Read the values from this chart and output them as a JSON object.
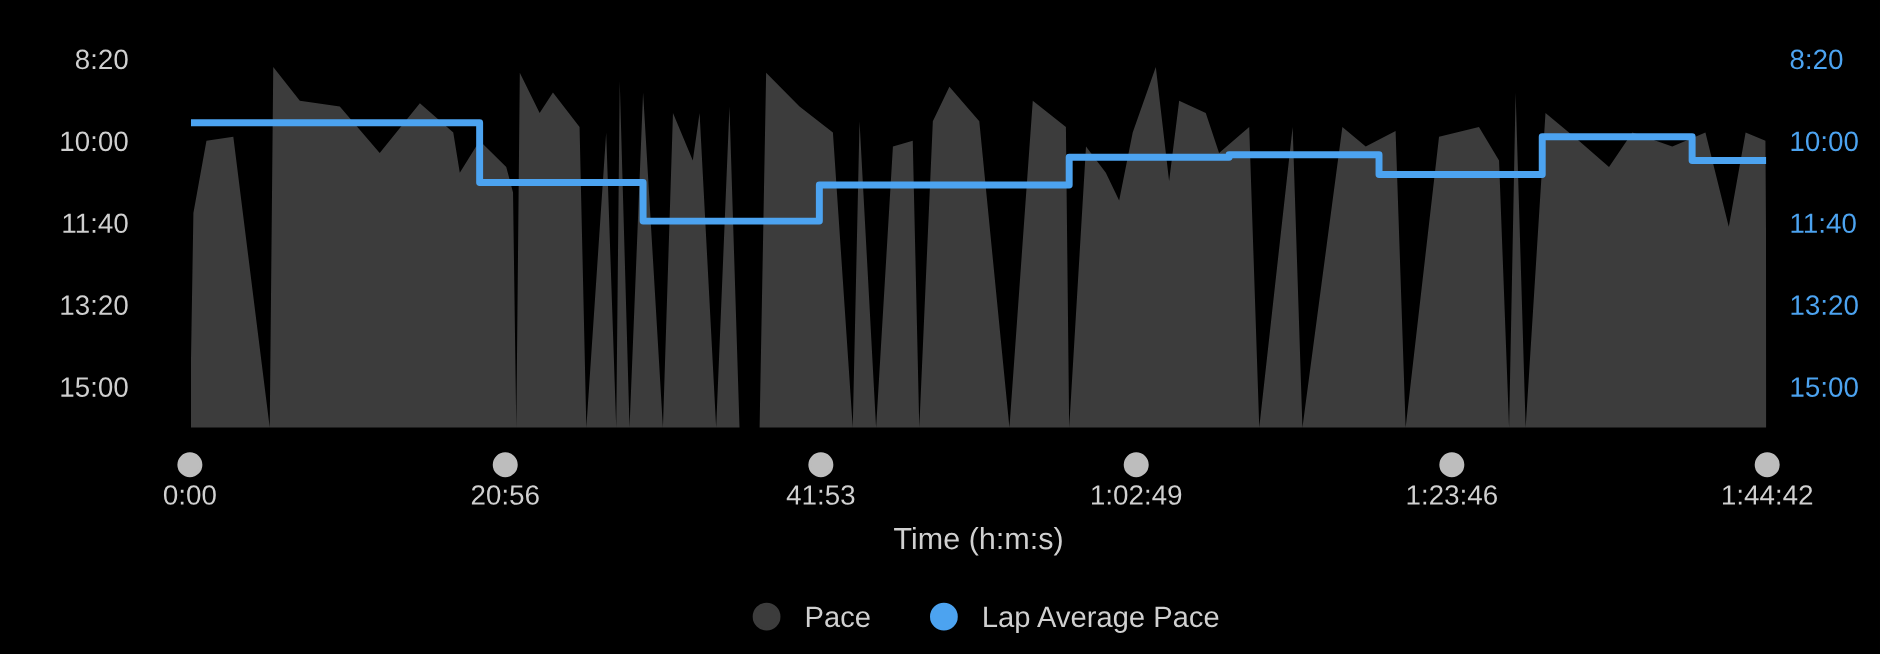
{
  "chart_data": {
    "type": "area",
    "xlabel": "Time (h:m:s)",
    "xlim": [
      0,
      6282
    ],
    "xticks": [
      {
        "value": 0,
        "label": "0:00"
      },
      {
        "value": 1256,
        "label": "20:56"
      },
      {
        "value": 2513,
        "label": "41:53"
      },
      {
        "value": 3769,
        "label": "1:02:49"
      },
      {
        "value": 5026,
        "label": "1:23:46"
      },
      {
        "value": 6282,
        "label": "1:44:42"
      }
    ],
    "ylim": [
      955,
      480
    ],
    "yticks": [
      {
        "value": 500,
        "label": "8:20"
      },
      {
        "value": 600,
        "label": "10:00"
      },
      {
        "value": 700,
        "label": "11:40"
      },
      {
        "value": 800,
        "label": "13:20"
      },
      {
        "value": 900,
        "label": "15:00"
      }
    ],
    "y2lim": [
      955,
      480
    ],
    "y2ticks": [
      {
        "value": 500,
        "label": "8:20"
      },
      {
        "value": 600,
        "label": "10:00"
      },
      {
        "value": 700,
        "label": "11:40"
      },
      {
        "value": 800,
        "label": "13:20"
      },
      {
        "value": 900,
        "label": "15:00"
      }
    ],
    "grid": false,
    "legend": "bottom",
    "series": [
      {
        "name": "Pace",
        "color": "#3c3c3c",
        "x": [
          0,
          14,
          66,
          173,
          318,
          332,
          438,
          597,
          756,
          916,
          1049,
          1075,
          1154,
          1260,
          1287,
          1300,
          1314,
          1393,
          1446,
          1552,
          1579,
          1658,
          1698,
          1712,
          1751,
          1805,
          1884,
          1924,
          2003,
          2030,
          2096,
          2149,
          2189,
          2269,
          2295,
          2428,
          2561,
          2640,
          2667,
          2733,
          2800,
          2879,
          2905,
          2959,
          3025,
          3144,
          3264,
          3357,
          3489,
          3502,
          3569,
          3648,
          3701,
          3755,
          3847,
          3900,
          3940,
          4046,
          4099,
          4219,
          4259,
          4392,
          4431,
          4590,
          4683,
          4802,
          4842,
          4975,
          5134,
          5214,
          5254,
          5280,
          5320,
          5399,
          5532,
          5652,
          5745,
          5904,
          6036,
          6129,
          6196,
          6275,
          6282
        ],
        "values": [
          950,
          688,
          600,
          595,
          950,
          510,
          551,
          558,
          615,
          554,
          590,
          639,
          600,
          632,
          663,
          950,
          517,
          566,
          541,
          583,
          950,
          590,
          950,
          527,
          950,
          541,
          950,
          566,
          624,
          566,
          950,
          558,
          950,
          950,
          517,
          558,
          590,
          950,
          576,
          950,
          607,
          600,
          950,
          576,
          534,
          576,
          950,
          551,
          583,
          950,
          607,
          639,
          673,
          590,
          510,
          649,
          551,
          566,
          615,
          583,
          950,
          583,
          950,
          583,
          607,
          588,
          950,
          595,
          583,
          624,
          950,
          541,
          950,
          566,
          600,
          632,
          590,
          607,
          590,
          705,
          590,
          600,
          950
        ]
      },
      {
        "name": "Lap Average Pace",
        "type": "step",
        "color": "#4ca3f0",
        "x": [
          0,
          1154,
          1805,
          2507,
          3502,
          4139,
          4736,
          5386,
          5983,
          6282
        ],
        "values": [
          578,
          651,
          698,
          654,
          620,
          617,
          641,
          595,
          624,
          624
        ]
      }
    ]
  }
}
